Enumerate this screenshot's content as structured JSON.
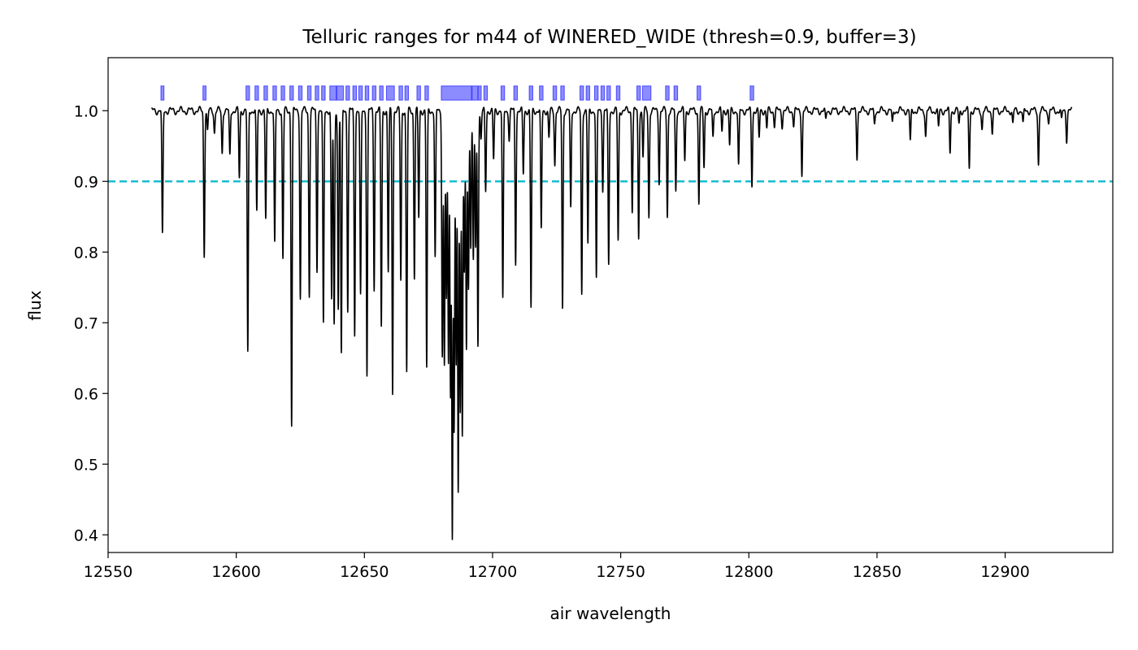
{
  "chart_data": {
    "type": "line",
    "title": "Telluric ranges for m44 of WINERED_WIDE (thresh=0.9, buffer=3)",
    "xlabel": "air wavelength",
    "ylabel": "flux",
    "xlim": [
      12550,
      12942
    ],
    "ylim": [
      0.375,
      1.075
    ],
    "xticks": [
      12550,
      12600,
      12650,
      12700,
      12750,
      12800,
      12850,
      12900
    ],
    "yticks": [
      0.4,
      0.5,
      0.6,
      0.7,
      0.8,
      0.9,
      1.0
    ],
    "grid": false,
    "legend": "none",
    "threshold": {
      "value": 0.9,
      "color": "#17becf",
      "style": "dashed"
    },
    "spectrum": {
      "color": "#000000",
      "x_start": 12567,
      "x_end": 12926,
      "continuum": 1.0,
      "lines": [
        [
          12571.2,
          0.822
        ],
        [
          12587.5,
          0.796
        ],
        [
          12588.8,
          0.97
        ],
        [
          12591.5,
          0.97
        ],
        [
          12594.5,
          0.94
        ],
        [
          12597.5,
          0.935
        ],
        [
          12601.2,
          0.905
        ],
        [
          12604.5,
          0.655
        ],
        [
          12608.0,
          0.855
        ],
        [
          12611.5,
          0.845
        ],
        [
          12615.0,
          0.81
        ],
        [
          12618.2,
          0.79
        ],
        [
          12621.6,
          0.557
        ],
        [
          12625.0,
          0.735
        ],
        [
          12628.5,
          0.74
        ],
        [
          12631.5,
          0.775
        ],
        [
          12634.0,
          0.695
        ],
        [
          12637.2,
          0.73
        ],
        [
          12638.2,
          0.695
        ],
        [
          12639.8,
          0.72
        ],
        [
          12641.0,
          0.653
        ],
        [
          12643.5,
          0.72
        ],
        [
          12646.2,
          0.685
        ],
        [
          12648.5,
          0.735
        ],
        [
          12651.0,
          0.628
        ],
        [
          12653.8,
          0.75
        ],
        [
          12656.6,
          0.695
        ],
        [
          12659.3,
          0.77
        ],
        [
          12661.0,
          0.603
        ],
        [
          12664.2,
          0.76
        ],
        [
          12666.5,
          0.629
        ],
        [
          12669.5,
          0.765
        ],
        [
          12671.2,
          0.848
        ],
        [
          12674.3,
          0.635
        ],
        [
          12677.6,
          0.79
        ],
        [
          12680.4,
          0.655
        ],
        [
          12681.2,
          0.64
        ],
        [
          12682.0,
          0.73
        ],
        [
          12682.8,
          0.645
        ],
        [
          12683.6,
          0.6
        ],
        [
          12684.3,
          0.403
        ],
        [
          12685.0,
          0.545
        ],
        [
          12685.8,
          0.64
        ],
        [
          12686.6,
          0.46
        ],
        [
          12687.4,
          0.58
        ],
        [
          12688.2,
          0.54
        ],
        [
          12689.0,
          0.77
        ],
        [
          12689.8,
          0.66
        ],
        [
          12690.6,
          0.75
        ],
        [
          12691.5,
          0.81
        ],
        [
          12692.5,
          0.785
        ],
        [
          12693.4,
          0.805
        ],
        [
          12694.3,
          0.67
        ],
        [
          12695.5,
          0.96
        ],
        [
          12697.3,
          0.885
        ],
        [
          12700.4,
          0.93
        ],
        [
          12704.0,
          0.73
        ],
        [
          12706.5,
          0.96
        ],
        [
          12709.0,
          0.785
        ],
        [
          12712.0,
          0.91
        ],
        [
          12715.0,
          0.72
        ],
        [
          12719.0,
          0.83
        ],
        [
          12722.0,
          0.96
        ],
        [
          12724.3,
          0.925
        ],
        [
          12727.3,
          0.72
        ],
        [
          12730.5,
          0.86
        ],
        [
          12734.8,
          0.74
        ],
        [
          12737.2,
          0.81
        ],
        [
          12740.5,
          0.76
        ],
        [
          12743.0,
          0.89
        ],
        [
          12745.3,
          0.78
        ],
        [
          12749.0,
          0.815
        ],
        [
          12754.5,
          0.86
        ],
        [
          12757.0,
          0.82
        ],
        [
          12758.7,
          0.935
        ],
        [
          12761.0,
          0.85
        ],
        [
          12765.0,
          0.9
        ],
        [
          12768.2,
          0.85
        ],
        [
          12771.5,
          0.885
        ],
        [
          12775.0,
          0.93
        ],
        [
          12780.5,
          0.87
        ],
        [
          12782.5,
          0.92
        ],
        [
          12786.0,
          0.96
        ],
        [
          12789.5,
          0.97
        ],
        [
          12792.5,
          0.95
        ],
        [
          12796.0,
          0.92
        ],
        [
          12801.2,
          0.895
        ],
        [
          12804.0,
          0.96
        ],
        [
          12807.0,
          0.975
        ],
        [
          12810.0,
          0.98
        ],
        [
          12813.0,
          0.98
        ],
        [
          12817.5,
          0.98
        ],
        [
          12820.7,
          0.91
        ],
        [
          12830.0,
          0.985
        ],
        [
          12842.2,
          0.935
        ],
        [
          12849.0,
          0.98
        ],
        [
          12856.0,
          0.98
        ],
        [
          12863.0,
          0.955
        ],
        [
          12869.0,
          0.965
        ],
        [
          12874.0,
          0.975
        ],
        [
          12878.5,
          0.94
        ],
        [
          12882.0,
          0.98
        ],
        [
          12886.0,
          0.92
        ],
        [
          12891.0,
          0.975
        ],
        [
          12895.0,
          0.97
        ],
        [
          12903.0,
          0.98
        ],
        [
          12907.0,
          0.98
        ],
        [
          12913.0,
          0.925
        ],
        [
          12917.0,
          0.985
        ],
        [
          12922.0,
          0.985
        ],
        [
          12924.0,
          0.96
        ]
      ]
    },
    "telluric_ranges": {
      "color": "#0000ff",
      "y_range": [
        1.015,
        1.035
      ],
      "ranges": [
        [
          12570.6,
          12571.8
        ],
        [
          12587.0,
          12588.2
        ],
        [
          12603.8,
          12605.2
        ],
        [
          12607.3,
          12608.7
        ],
        [
          12610.8,
          12612.2
        ],
        [
          12614.3,
          12615.7
        ],
        [
          12617.5,
          12618.9
        ],
        [
          12620.9,
          12622.3
        ],
        [
          12624.3,
          12625.7
        ],
        [
          12627.8,
          12629.2
        ],
        [
          12630.8,
          12632.2
        ],
        [
          12633.3,
          12634.7
        ],
        [
          12636.5,
          12639.0
        ],
        [
          12639.2,
          12641.8
        ],
        [
          12642.8,
          12644.2
        ],
        [
          12645.5,
          12646.9
        ],
        [
          12647.8,
          12649.2
        ],
        [
          12650.3,
          12651.7
        ],
        [
          12653.1,
          12654.5
        ],
        [
          12655.9,
          12657.3
        ],
        [
          12658.6,
          12661.7
        ],
        [
          12663.5,
          12664.9
        ],
        [
          12665.8,
          12667.2
        ],
        [
          12670.5,
          12671.9
        ],
        [
          12673.6,
          12675.0
        ],
        [
          12680.0,
          12691.8
        ],
        [
          12692.0,
          12694.2
        ],
        [
          12694.5,
          12695.6
        ],
        [
          12696.6,
          12698.0
        ],
        [
          12703.3,
          12704.7
        ],
        [
          12708.3,
          12709.7
        ],
        [
          12714.3,
          12715.7
        ],
        [
          12718.3,
          12719.7
        ],
        [
          12723.6,
          12725.0
        ],
        [
          12726.6,
          12728.0
        ],
        [
          12734.1,
          12735.5
        ],
        [
          12736.5,
          12737.9
        ],
        [
          12739.8,
          12741.2
        ],
        [
          12742.3,
          12743.7
        ],
        [
          12744.6,
          12746.0
        ],
        [
          12748.3,
          12749.7
        ],
        [
          12756.3,
          12757.7
        ],
        [
          12758.5,
          12761.8
        ],
        [
          12767.5,
          12768.9
        ],
        [
          12770.8,
          12772.2
        ],
        [
          12779.8,
          12781.2
        ],
        [
          12800.5,
          12801.9
        ]
      ]
    }
  }
}
